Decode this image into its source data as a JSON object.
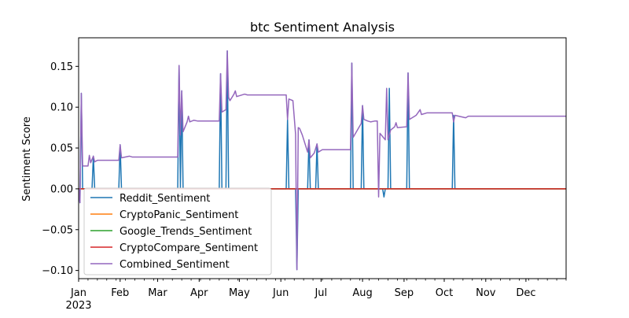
{
  "chart_data": {
    "type": "line",
    "title": "btc Sentiment Analysis",
    "xlabel": "",
    "ylabel": "Sentiment Score",
    "x_range": [
      "2023-01-01",
      "2023-12-31"
    ],
    "ylim": [
      -0.11,
      0.185
    ],
    "grid": false,
    "legend_position": "lower-left",
    "y_ticks": [
      {
        "value": 0.15,
        "label": "0.15"
      },
      {
        "value": 0.1,
        "label": "0.10"
      },
      {
        "value": 0.05,
        "label": "0.05"
      },
      {
        "value": 0.0,
        "label": "0.00"
      },
      {
        "value": -0.05,
        "label": "−0.05"
      },
      {
        "value": -0.1,
        "label": "−0.10"
      }
    ],
    "x_ticks": [
      {
        "date": "2023-01-01",
        "label": "Jan",
        "sublabel": "2023"
      },
      {
        "date": "2023-02-01",
        "label": "Feb"
      },
      {
        "date": "2023-03-01",
        "label": "Mar"
      },
      {
        "date": "2023-04-01",
        "label": "Apr"
      },
      {
        "date": "2023-05-01",
        "label": "May"
      },
      {
        "date": "2023-06-01",
        "label": "Jun"
      },
      {
        "date": "2023-07-01",
        "label": "Jul"
      },
      {
        "date": "2023-08-01",
        "label": "Aug"
      },
      {
        "date": "2023-09-01",
        "label": "Sep"
      },
      {
        "date": "2023-10-01",
        "label": "Oct"
      },
      {
        "date": "2023-11-01",
        "label": "Nov"
      },
      {
        "date": "2023-12-01",
        "label": "Dec"
      }
    ],
    "series": [
      {
        "name": "Reddit_Sentiment",
        "color": "#1f77b4",
        "points": [
          [
            "2023-01-01",
            0
          ],
          [
            "2023-01-02",
            -0.017
          ],
          [
            "2023-01-03",
            0.117
          ],
          [
            "2023-01-04",
            0
          ],
          [
            "2023-01-11",
            0
          ],
          [
            "2023-01-12",
            0.04
          ],
          [
            "2023-01-13",
            0
          ],
          [
            "2023-01-31",
            0
          ],
          [
            "2023-02-01",
            0.054
          ],
          [
            "2023-02-02",
            0
          ],
          [
            "2023-03-16",
            0
          ],
          [
            "2023-03-17",
            0.151
          ],
          [
            "2023-03-18",
            0
          ],
          [
            "2023-03-19",
            0.12
          ],
          [
            "2023-03-20",
            0
          ],
          [
            "2023-04-16",
            0
          ],
          [
            "2023-04-17",
            0.141
          ],
          [
            "2023-04-18",
            0
          ],
          [
            "2023-04-21",
            0
          ],
          [
            "2023-04-22",
            0.169
          ],
          [
            "2023-04-23",
            0
          ],
          [
            "2023-06-05",
            0
          ],
          [
            "2023-06-06",
            0.085
          ],
          [
            "2023-06-07",
            0
          ],
          [
            "2023-06-12",
            0
          ],
          [
            "2023-06-13",
            -0.099
          ],
          [
            "2023-06-14",
            0
          ],
          [
            "2023-06-21",
            0
          ],
          [
            "2023-06-22",
            0.06
          ],
          [
            "2023-06-23",
            0
          ],
          [
            "2023-06-27",
            0
          ],
          [
            "2023-06-28",
            0.055
          ],
          [
            "2023-06-29",
            0
          ],
          [
            "2023-07-23",
            0
          ],
          [
            "2023-07-24",
            0.154
          ],
          [
            "2023-07-25",
            0
          ],
          [
            "2023-07-31",
            0
          ],
          [
            "2023-08-01",
            0.102
          ],
          [
            "2023-08-02",
            0
          ],
          [
            "2023-08-16",
            0
          ],
          [
            "2023-08-17",
            -0.01
          ],
          [
            "2023-08-18",
            0
          ],
          [
            "2023-08-20",
            0
          ],
          [
            "2023-08-21",
            0.123
          ],
          [
            "2023-08-22",
            0
          ],
          [
            "2023-09-03",
            0
          ],
          [
            "2023-09-04",
            0.142
          ],
          [
            "2023-09-05",
            0
          ],
          [
            "2023-10-07",
            0
          ],
          [
            "2023-10-08",
            0.09
          ],
          [
            "2023-10-09",
            0
          ],
          [
            "2023-12-31",
            0
          ]
        ]
      },
      {
        "name": "CryptoPanic_Sentiment",
        "color": "#ff7f0e",
        "points": [
          [
            "2023-01-01",
            0
          ],
          [
            "2023-12-31",
            0
          ]
        ]
      },
      {
        "name": "Google_Trends_Sentiment",
        "color": "#2ca02c",
        "points": [
          [
            "2023-01-01",
            0
          ],
          [
            "2023-12-31",
            0
          ]
        ]
      },
      {
        "name": "CryptoCompare_Sentiment",
        "color": "#d62728",
        "points": [
          [
            "2023-01-01",
            0
          ],
          [
            "2023-12-31",
            0
          ]
        ]
      },
      {
        "name": "Combined_Sentiment",
        "color": "#9467bd",
        "points": [
          [
            "2023-01-01",
            0.0
          ],
          [
            "2023-01-02",
            -0.017
          ],
          [
            "2023-01-03",
            0.117
          ],
          [
            "2023-01-04",
            0.028
          ],
          [
            "2023-01-08",
            0.028
          ],
          [
            "2023-01-09",
            0.041
          ],
          [
            "2023-01-10",
            0.032
          ],
          [
            "2023-01-12",
            0.04
          ],
          [
            "2023-01-13",
            0.033
          ],
          [
            "2023-01-15",
            0.035
          ],
          [
            "2023-01-31",
            0.035
          ],
          [
            "2023-02-01",
            0.054
          ],
          [
            "2023-02-02",
            0.038
          ],
          [
            "2023-02-08",
            0.04
          ],
          [
            "2023-02-10",
            0.039
          ],
          [
            "2023-03-16",
            0.039
          ],
          [
            "2023-03-17",
            0.151
          ],
          [
            "2023-03-18",
            0.066
          ],
          [
            "2023-03-19",
            0.12
          ],
          [
            "2023-03-20",
            0.07
          ],
          [
            "2023-03-23",
            0.082
          ],
          [
            "2023-03-24",
            0.089
          ],
          [
            "2023-03-25",
            0.082
          ],
          [
            "2023-03-28",
            0.084
          ],
          [
            "2023-03-31",
            0.083
          ],
          [
            "2023-04-16",
            0.083
          ],
          [
            "2023-04-17",
            0.141
          ],
          [
            "2023-04-18",
            0.094
          ],
          [
            "2023-04-21",
            0.097
          ],
          [
            "2023-04-22",
            0.169
          ],
          [
            "2023-04-23",
            0.112
          ],
          [
            "2023-04-24",
            0.108
          ],
          [
            "2023-04-27",
            0.116
          ],
          [
            "2023-04-28",
            0.12
          ],
          [
            "2023-04-29",
            0.113
          ],
          [
            "2023-05-05",
            0.116
          ],
          [
            "2023-05-07",
            0.115
          ],
          [
            "2023-06-05",
            0.115
          ],
          [
            "2023-06-06",
            0.085
          ],
          [
            "2023-06-07",
            0.11
          ],
          [
            "2023-06-10",
            0.108
          ],
          [
            "2023-06-12",
            0.067
          ],
          [
            "2023-06-13",
            -0.099
          ],
          [
            "2023-06-14",
            0.075
          ],
          [
            "2023-06-15",
            0.074
          ],
          [
            "2023-06-17",
            0.066
          ],
          [
            "2023-06-21",
            0.045
          ],
          [
            "2023-06-22",
            0.06
          ],
          [
            "2023-06-23",
            0.038
          ],
          [
            "2023-06-26",
            0.044
          ],
          [
            "2023-06-28",
            0.055
          ],
          [
            "2023-06-29",
            0.045
          ],
          [
            "2023-07-02",
            0.048
          ],
          [
            "2023-07-23",
            0.048
          ],
          [
            "2023-07-24",
            0.154
          ],
          [
            "2023-07-25",
            0.063
          ],
          [
            "2023-07-31",
            0.08
          ],
          [
            "2023-08-01",
            0.102
          ],
          [
            "2023-08-02",
            0.085
          ],
          [
            "2023-08-05",
            0.083
          ],
          [
            "2023-08-07",
            0.082
          ],
          [
            "2023-08-10",
            0.083
          ],
          [
            "2023-08-12",
            0.083
          ],
          [
            "2023-08-13",
            -0.01
          ],
          [
            "2023-08-14",
            0.068
          ],
          [
            "2023-08-18",
            0.06
          ],
          [
            "2023-08-19",
            0.123
          ],
          [
            "2023-08-20",
            0.06
          ],
          [
            "2023-08-22",
            0.072
          ],
          [
            "2023-08-25",
            0.076
          ],
          [
            "2023-08-26",
            0.081
          ],
          [
            "2023-08-27",
            0.075
          ],
          [
            "2023-09-03",
            0.076
          ],
          [
            "2023-09-04",
            0.142
          ],
          [
            "2023-09-05",
            0.085
          ],
          [
            "2023-09-10",
            0.09
          ],
          [
            "2023-09-13",
            0.097
          ],
          [
            "2023-09-14",
            0.091
          ],
          [
            "2023-09-18",
            0.093
          ],
          [
            "2023-10-07",
            0.093
          ],
          [
            "2023-10-08",
            0.082
          ],
          [
            "2023-10-09",
            0.09
          ],
          [
            "2023-10-17",
            0.087
          ],
          [
            "2023-10-19",
            0.089
          ],
          [
            "2023-12-31",
            0.089
          ]
        ]
      }
    ]
  }
}
